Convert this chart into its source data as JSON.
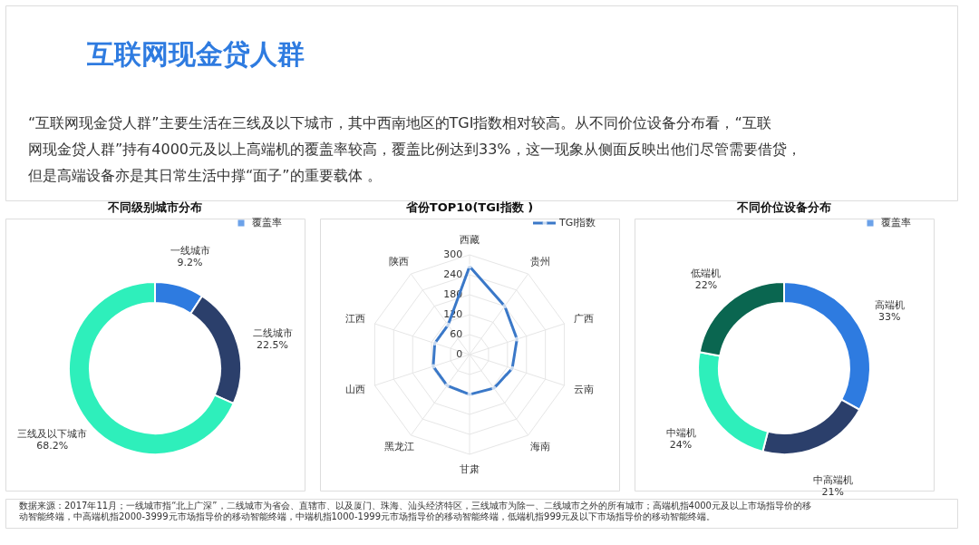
{
  "chart_data": [
    {
      "type": "other",
      "title": "互联网现金贷人群",
      "annotations": [
        "“互联网现金贷人群”主要生活在三线及以下城市，其中西南地区的TGI指数相对较高。从不同价位设备分布看，“互联",
        "网现金贷人群”持有4000元及以上高端机的覆盖率较高，覆盖比例达到33%，这一现象从侧面反映出他们尽管需要借贷，",
        "但是高端设备亦是其日常生活中撑“面子”的重要载体 。"
      ]
    },
    {
      "type": "donut",
      "title": "不同级别城市分布",
      "categories": [
        "一线城市",
        "二线城市",
        "三线及以下城市"
      ],
      "series": [
        {
          "name": "覆盖率",
          "color": "#2e7be0",
          "values": [
            9.2,
            22.5,
            68.2
          ]
        }
      ],
      "colors": [
        "#2e7be0",
        "#2b3f6b",
        "#2eefbb"
      ],
      "value_labels": [
        "9.2%",
        "22.5%",
        "68.2%"
      ],
      "legend": "top right"
    },
    {
      "type": "radar",
      "title": "省份TOP10(TGI指数 )",
      "categories": [
        "西藏",
        "贵州",
        "广西",
        "云南",
        "海南",
        "甘肃",
        "黑龙江",
        "山西",
        "江西",
        "陕西"
      ],
      "series": [
        {
          "name": "TGI指数",
          "color": "#3a78c8",
          "values": [
            265,
            180,
            150,
            135,
            125,
            120,
            115,
            115,
            110,
            110
          ]
        }
      ],
      "ylim": [
        0,
        300
      ],
      "yticks": [
        0,
        60,
        120,
        180,
        240,
        300
      ],
      "marker": "circle",
      "legend": "top right",
      "grid": true
    },
    {
      "type": "donut",
      "title": "不同价位设备分布",
      "categories": [
        "高端机",
        "中高端机",
        "中端机",
        "低端机"
      ],
      "series": [
        {
          "name": "覆盖率",
          "color": "#2e7be0",
          "values": [
            33,
            21,
            24,
            22
          ]
        }
      ],
      "colors": [
        "#2e7be0",
        "#2b3f6b",
        "#2eefbb",
        "#0a6650"
      ],
      "value_labels": [
        "33%",
        "21%",
        "24%",
        "22%"
      ],
      "legend": "top right"
    },
    {
      "type": "other",
      "annotations": [
        "数据来源：2017年11月；一线城市指“北上广深”，二线城市为省会、直辖市、以及厦门、珠海、汕头经济特区，三线城市为除一、二线城市之外的所有城市；高端机指4000元及以上市场指导价的移",
        "动智能终端，中高端机指2000-3999元市场指导价的移动智能终端，中端机指1000-1999元市场指导价的移动智能终端，低端机指999元及以下市场指导价的移动智能终端。"
      ]
    }
  ]
}
